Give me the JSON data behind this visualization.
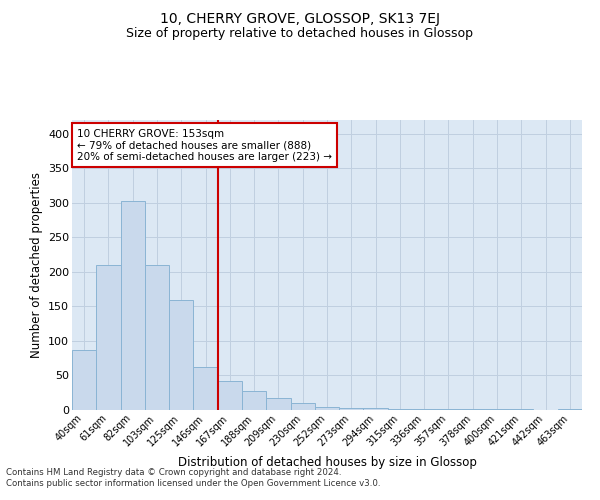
{
  "title": "10, CHERRY GROVE, GLOSSOP, SK13 7EJ",
  "subtitle": "Size of property relative to detached houses in Glossop",
  "xlabel": "Distribution of detached houses by size in Glossop",
  "ylabel": "Number of detached properties",
  "categories": [
    "40sqm",
    "61sqm",
    "82sqm",
    "103sqm",
    "125sqm",
    "146sqm",
    "167sqm",
    "188sqm",
    "209sqm",
    "230sqm",
    "252sqm",
    "273sqm",
    "294sqm",
    "315sqm",
    "336sqm",
    "357sqm",
    "378sqm",
    "400sqm",
    "421sqm",
    "442sqm",
    "463sqm"
  ],
  "values": [
    87,
    210,
    303,
    210,
    160,
    63,
    42,
    27,
    18,
    10,
    5,
    3,
    3,
    2,
    2,
    1,
    1,
    1,
    1,
    0,
    1
  ],
  "bar_color": "#c9d9ec",
  "bar_edge_color": "#8ab4d4",
  "grid_color": "#c0cfe0",
  "background_color": "#dce8f4",
  "vline_color": "#cc0000",
  "vline_x": 5.5,
  "annotation_line1": "10 CHERRY GROVE: 153sqm",
  "annotation_line2": "← 79% of detached houses are smaller (888)",
  "annotation_line3": "20% of semi-detached houses are larger (223) →",
  "annotation_box_color": "#ffffff",
  "annotation_box_edge": "#cc0000",
  "ylim": [
    0,
    420
  ],
  "yticks": [
    0,
    50,
    100,
    150,
    200,
    250,
    300,
    350,
    400
  ],
  "title_fontsize": 10,
  "subtitle_fontsize": 9,
  "footnote": "Contains HM Land Registry data © Crown copyright and database right 2024.\nContains public sector information licensed under the Open Government Licence v3.0."
}
